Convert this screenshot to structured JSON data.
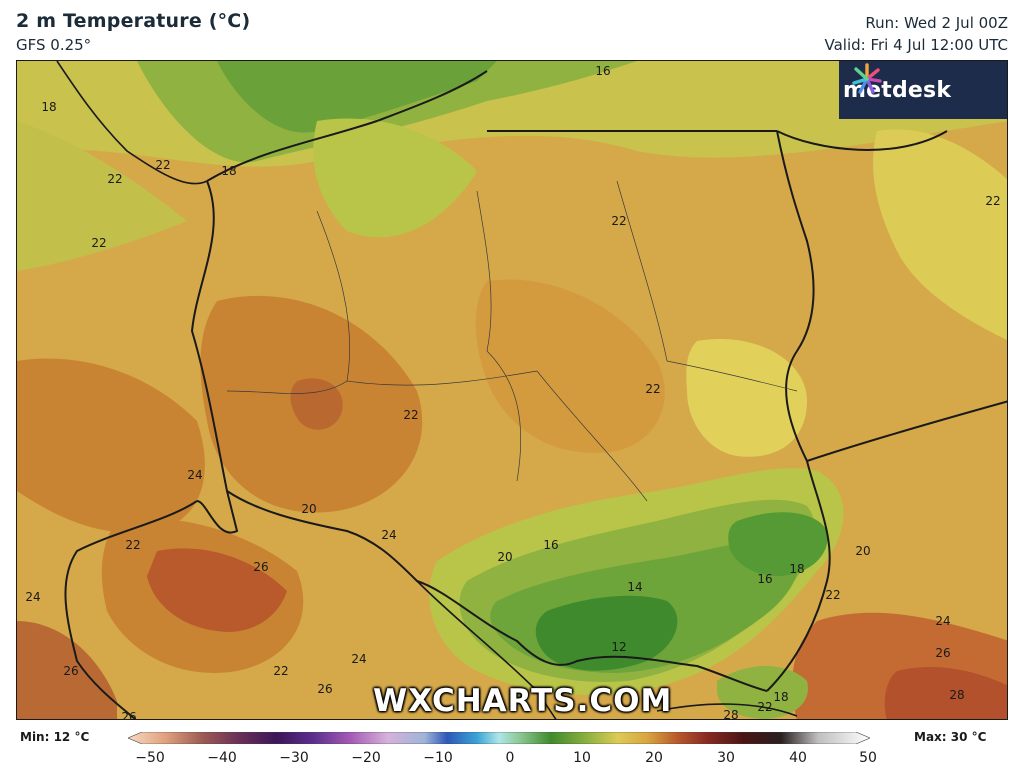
{
  "header": {
    "title": "2 m Temperature (°C)",
    "model": "GFS 0.25°",
    "run": "Run: Wed 2 Jul 00Z",
    "valid": "Valid: Fri 4 Jul 12:00 UTC"
  },
  "logo": {
    "text": "metdesk",
    "icon": "metdesk-logo-icon"
  },
  "watermark": "WXCHARTS.COM",
  "legend": {
    "min": "Min: 12 °C",
    "max": "Max: 30 °C",
    "ticks": [
      "−50",
      "−40",
      "−30",
      "−20",
      "−10",
      "0",
      "10",
      "20",
      "30",
      "40",
      "50"
    ]
  },
  "contour_labels": [
    "18",
    "16",
    "22",
    "22",
    "18",
    "22",
    "22",
    "22",
    "22",
    "22",
    "24",
    "20",
    "24",
    "22",
    "26",
    "24",
    "20",
    "16",
    "14",
    "12",
    "16",
    "18",
    "20",
    "22",
    "24",
    "26",
    "28",
    "18",
    "22",
    "26",
    "24",
    "26",
    "22",
    "26",
    "28"
  ],
  "colors": {
    "green_dark": "#3f8a2c",
    "green": "#6ea53a",
    "yellow_green": "#b9c548",
    "yellow": "#dccb54",
    "orange": "#d9a540",
    "orange_dark": "#c98433",
    "red_orange": "#b95a2c",
    "border": "#1a1a1a"
  }
}
